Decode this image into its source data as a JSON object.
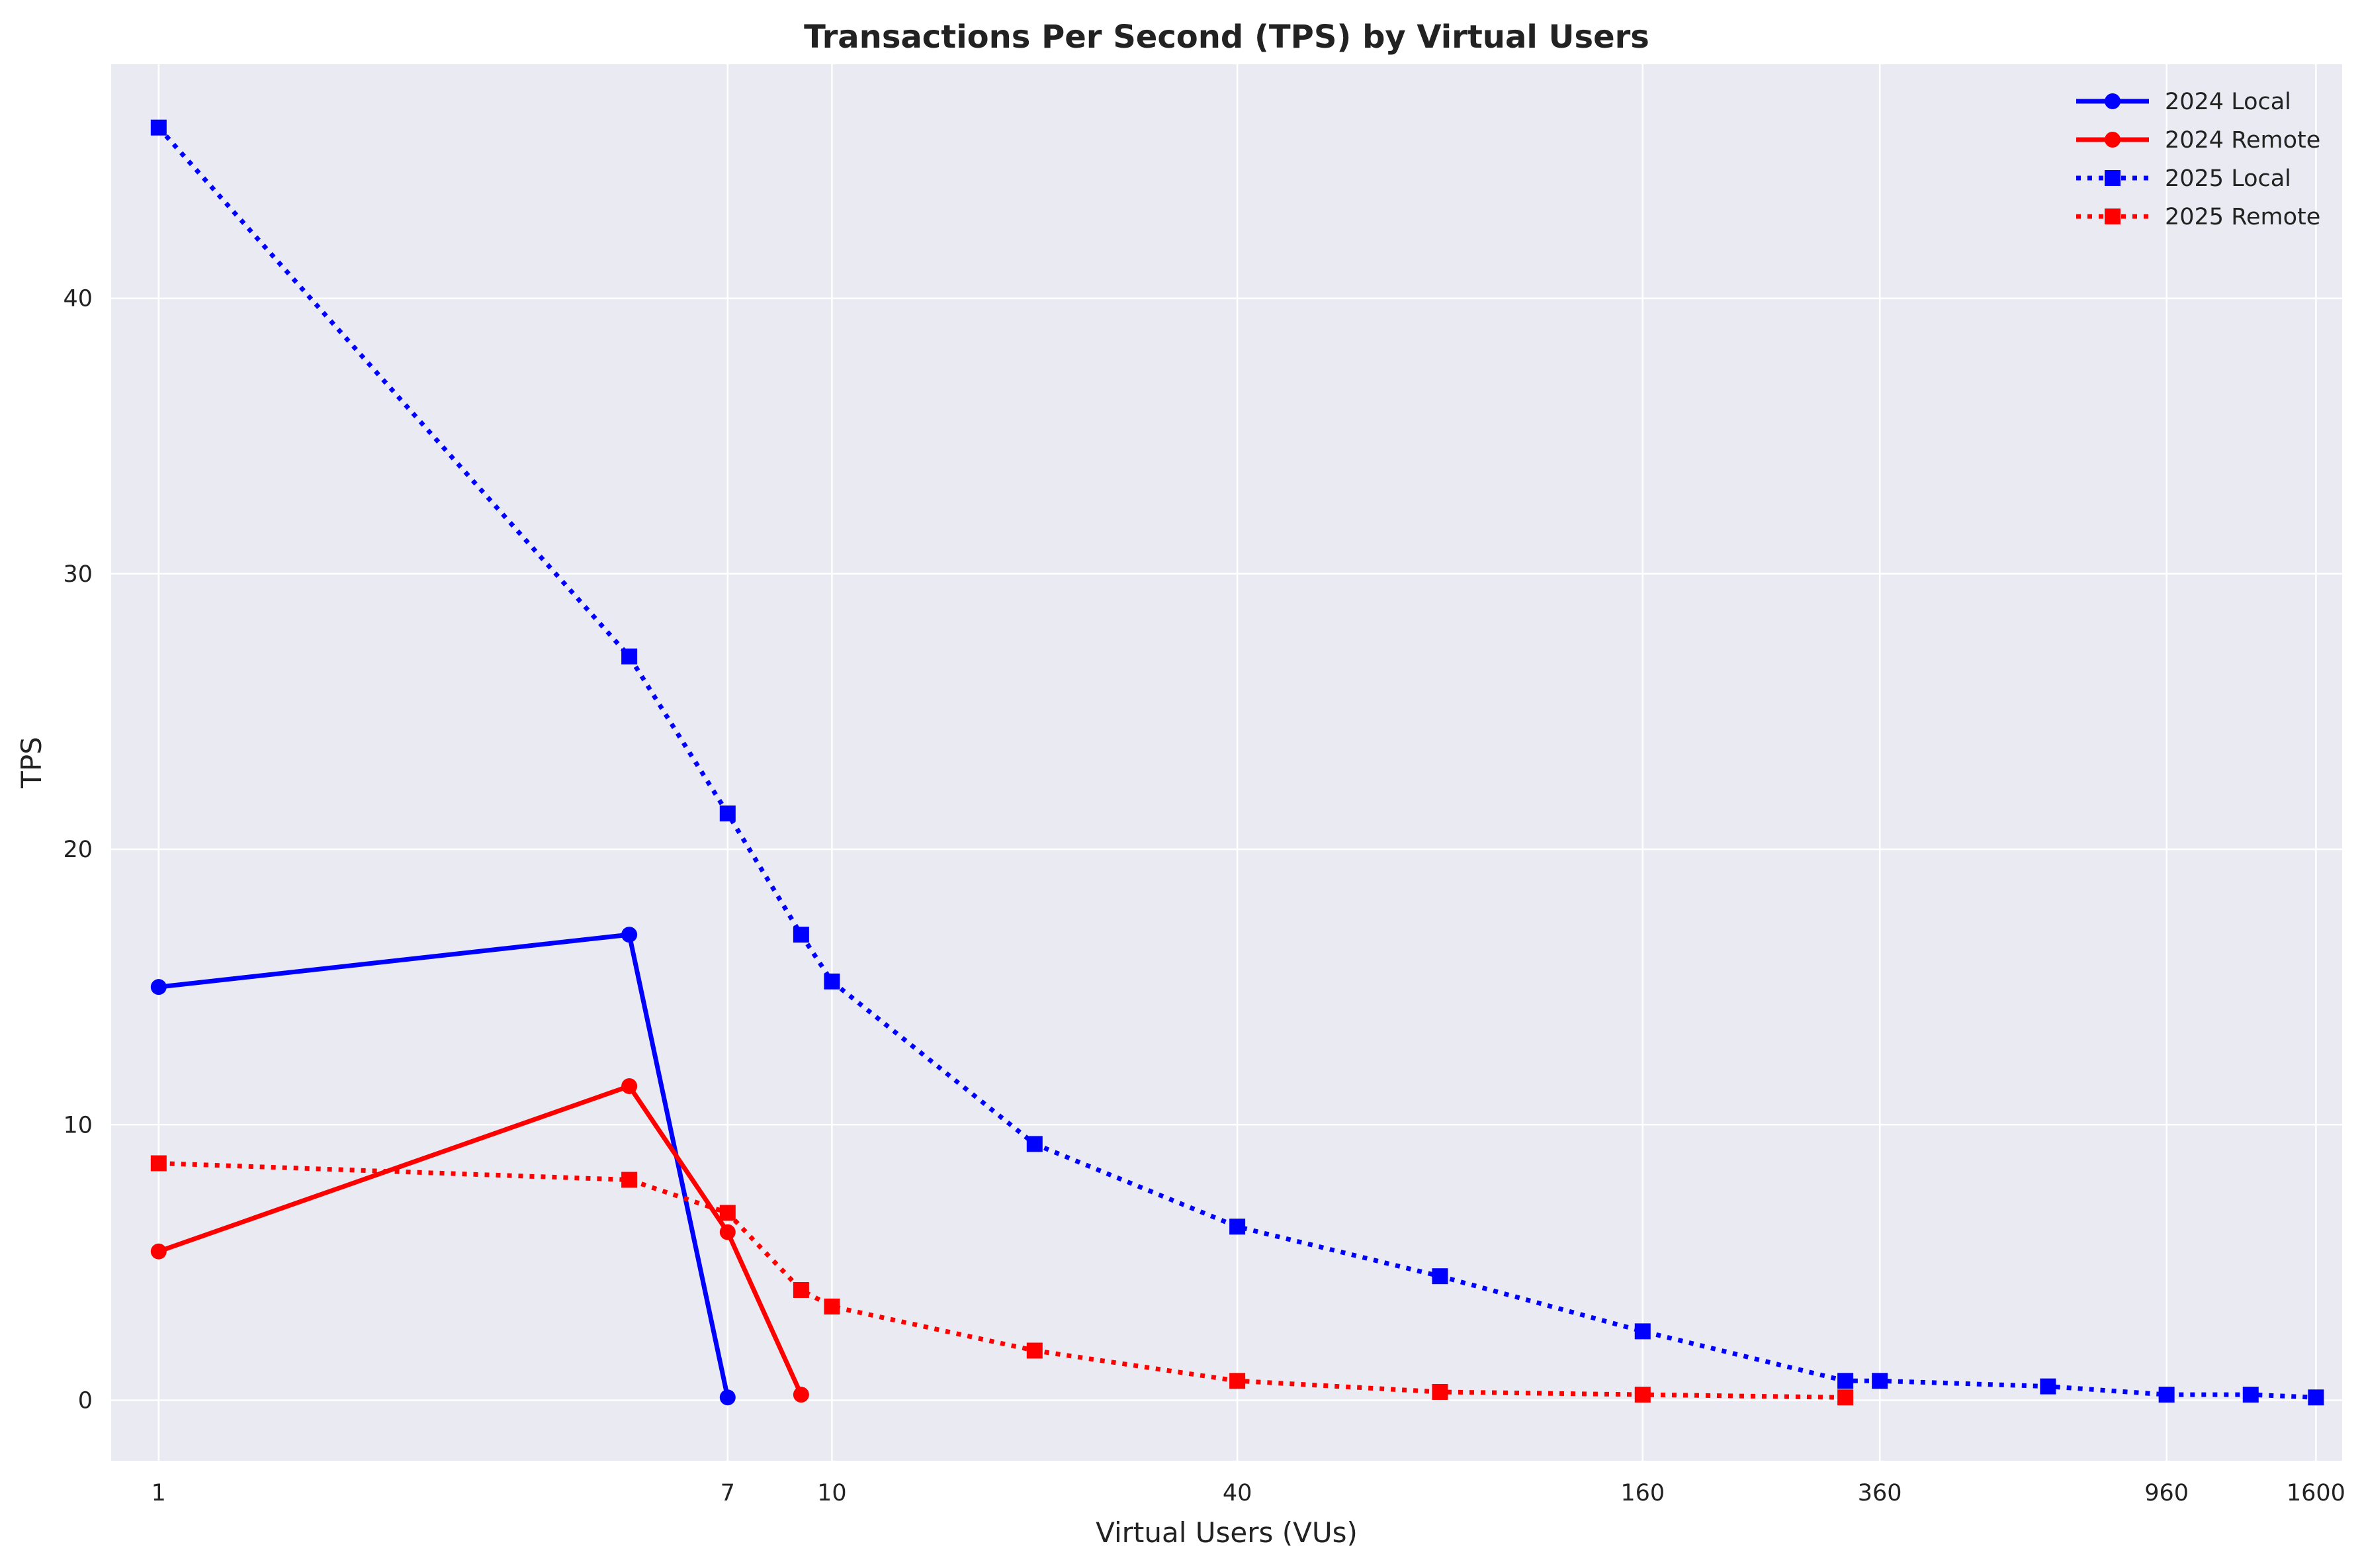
{
  "chart_data": {
    "type": "line",
    "title": "Transactions Per Second (TPS) by Virtual Users",
    "xlabel": "Virtual Users (VUs)",
    "ylabel": "TPS",
    "x_scale": "log",
    "x_ticks": [
      1,
      7,
      10,
      40,
      160,
      360,
      960,
      1600
    ],
    "y_ticks": [
      0,
      10,
      20,
      30,
      40
    ],
    "xlim": [
      0.85,
      1750
    ],
    "ylim": [
      -2.2,
      48.5
    ],
    "grid": true,
    "legend_position": "top-right",
    "background_color": "#eaeaf2",
    "series": [
      {
        "name": "2024 Local",
        "color": "#0000ff",
        "line_style": "solid",
        "marker": "circle",
        "x": [
          1,
          5,
          7
        ],
        "y": [
          15.0,
          16.9,
          0.1
        ]
      },
      {
        "name": "2024 Remote",
        "color": "#ff0000",
        "line_style": "solid",
        "marker": "circle",
        "x": [
          1,
          5,
          7,
          9
        ],
        "y": [
          5.4,
          11.4,
          6.1,
          0.2
        ]
      },
      {
        "name": "2025 Local",
        "color": "#0000ff",
        "line_style": "dotted",
        "marker": "square",
        "x": [
          1,
          5,
          7,
          9,
          10,
          20,
          40,
          80,
          160,
          320,
          360,
          640,
          960,
          1280,
          1600
        ],
        "y": [
          46.2,
          27.0,
          21.3,
          16.9,
          15.2,
          9.3,
          6.3,
          4.5,
          2.5,
          0.7,
          0.7,
          0.5,
          0.2,
          0.2,
          0.1
        ]
      },
      {
        "name": "2025 Remote",
        "color": "#ff0000",
        "line_style": "dotted",
        "marker": "square",
        "x": [
          1,
          5,
          7,
          9,
          10,
          20,
          40,
          80,
          160,
          320
        ],
        "y": [
          8.6,
          8.0,
          6.8,
          4.0,
          3.4,
          1.8,
          0.7,
          0.3,
          0.2,
          0.1
        ]
      }
    ]
  }
}
